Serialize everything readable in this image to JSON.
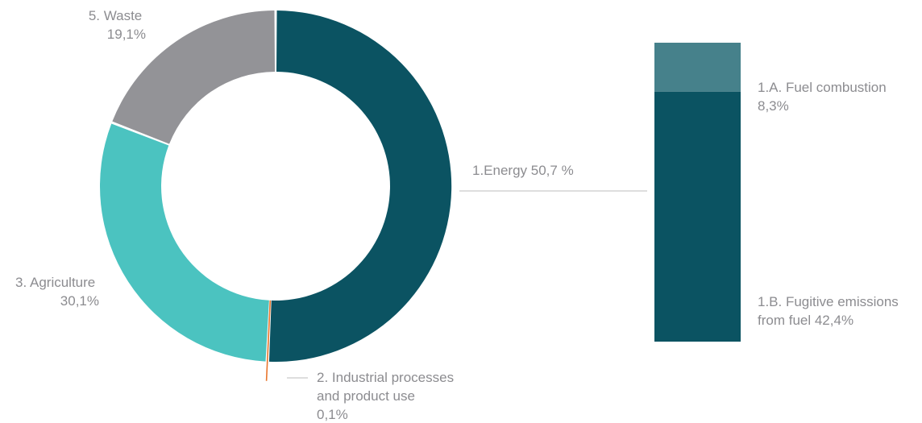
{
  "chart_data": [
    {
      "type": "pie",
      "variant": "donut",
      "slices": [
        {
          "label_lines": [
            "1.Energy 50,7 %"
          ],
          "value": 50.7,
          "color": "#0b5362"
        },
        {
          "label_lines": [
            "2. Industrial processes",
            "and product use",
            "0,1%"
          ],
          "value": 0.1,
          "color": "#e9762d"
        },
        {
          "label_lines": [
            "3. Agriculture",
            "30,1%"
          ],
          "value": 30.1,
          "color": "#4bc3c0"
        },
        {
          "label_lines": [
            "5. Waste",
            "19,1%"
          ],
          "value": 19.1,
          "color": "#939397"
        }
      ],
      "legend": "none"
    },
    {
      "type": "bar",
      "variant": "stacked",
      "breakdown_of": "1.Energy 50,7 %",
      "stack_total": 50.7,
      "segments": [
        {
          "label_lines": [
            "1.A. Fuel combustion",
            "8,3%"
          ],
          "value": 8.3,
          "color": "#46818b"
        },
        {
          "label_lines": [
            "1.B. Fugitive emissions",
            "from fuel 42,4%"
          ],
          "value": 42.4,
          "color": "#0b5362"
        }
      ],
      "legend": "none"
    }
  ],
  "colors": {
    "label_text": "#8c8c90",
    "leader_line": "#d4d4d4",
    "background": "#ffffff"
  }
}
